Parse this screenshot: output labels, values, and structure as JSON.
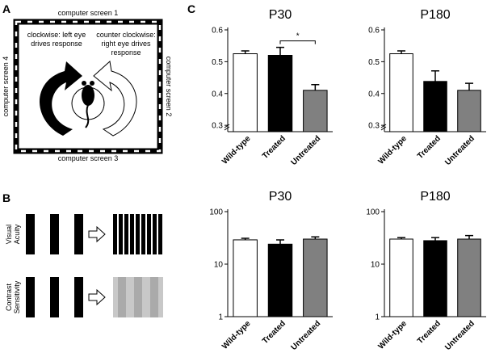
{
  "panel_labels": [
    "A",
    "B",
    "C"
  ],
  "panel_a": {
    "screens": [
      "computer screen 1",
      "computer screen 2",
      "computer screen 3",
      "computer screen 4"
    ],
    "clockwise": [
      "clockwise: left eye",
      "drives response"
    ],
    "counter_clockwise": [
      "counter clockwise:",
      "right eye drives",
      "response"
    ]
  },
  "panel_b": {
    "visual_acuity": [
      "Visual",
      "Acuity"
    ],
    "contrast_sensitivity": [
      "Contrast",
      "Sensitivity"
    ]
  },
  "chart_data": [
    {
      "type": "bar",
      "title": "P30",
      "categories": [
        "Wild-type",
        "Treated",
        "Untreated"
      ],
      "values": [
        0.525,
        0.52,
        0.41
      ],
      "errors": [
        0.009,
        0.025,
        0.018
      ],
      "colors": [
        "#ffffff",
        "#000000",
        "#808080"
      ],
      "ylim": [
        0.28,
        0.6
      ],
      "yticks": [
        0.3,
        0.4,
        0.5,
        0.6
      ],
      "axis_break": true,
      "annotation": "*"
    },
    {
      "type": "bar",
      "title": "P180",
      "categories": [
        "Wild-type",
        "Treated",
        "Untreated"
      ],
      "values": [
        0.525,
        0.438,
        0.41
      ],
      "errors": [
        0.009,
        0.033,
        0.022
      ],
      "colors": [
        "#ffffff",
        "#000000",
        "#808080"
      ],
      "ylim": [
        0.28,
        0.6
      ],
      "yticks": [
        0.3,
        0.4,
        0.5,
        0.6
      ],
      "axis_break": true
    },
    {
      "type": "bar",
      "title": "P30",
      "categories": [
        "Wild-type",
        "Treated",
        "Untreated"
      ],
      "values": [
        29,
        24,
        30
      ],
      "errors": [
        2,
        5,
        3
      ],
      "colors": [
        "#ffffff",
        "#000000",
        "#808080"
      ],
      "ylim": [
        1,
        100
      ],
      "yticks": [
        1,
        10,
        100
      ],
      "log_scale": true
    },
    {
      "type": "bar",
      "title": "P180",
      "categories": [
        "Wild-type",
        "Treated",
        "Untreated"
      ],
      "values": [
        30,
        28,
        30
      ],
      "errors": [
        2,
        4,
        5
      ],
      "colors": [
        "#ffffff",
        "#000000",
        "#808080"
      ],
      "ylim": [
        1,
        100
      ],
      "yticks": [
        1,
        10,
        100
      ],
      "log_scale": true
    }
  ]
}
